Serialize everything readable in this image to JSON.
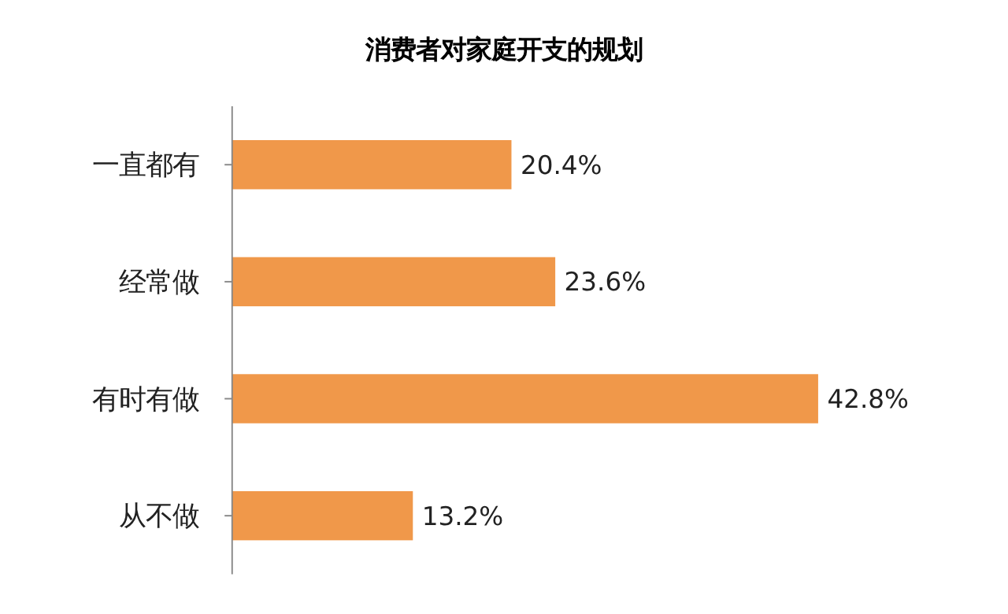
{
  "chart_data": {
    "type": "bar",
    "orientation": "horizontal",
    "title": "消费者对家庭开支的规划",
    "categories": [
      "一直都有",
      "经常做",
      "有时有做",
      "从不做"
    ],
    "values": [
      20.4,
      23.6,
      42.8,
      13.2
    ],
    "value_labels": [
      "20.4%",
      "23.6%",
      "42.8%",
      "13.2%"
    ],
    "color": "#f0984a",
    "grid": false
  }
}
